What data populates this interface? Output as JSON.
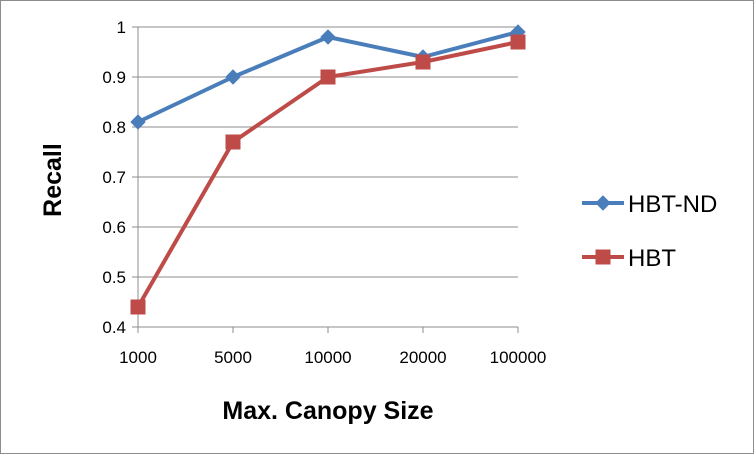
{
  "chart_data": {
    "type": "line",
    "title": "",
    "xlabel": "Max. Canopy Size",
    "ylabel": "Recall",
    "categories": [
      "1000",
      "5000",
      "10000",
      "20000",
      "100000"
    ],
    "ylim": [
      0.4,
      1
    ],
    "yticks": [
      0.4,
      0.5,
      0.6,
      0.7,
      0.8,
      0.9,
      1
    ],
    "ytick_labels": [
      "0.4",
      "0.5",
      "0.6",
      "0.7",
      "0.8",
      "0.9",
      "1"
    ],
    "grid": true,
    "legend_position": "right",
    "series": [
      {
        "name": "HBT-ND",
        "values": [
          0.81,
          0.9,
          0.98,
          0.94,
          0.99
        ],
        "color": "#4a7ebb",
        "marker": "diamond"
      },
      {
        "name": "HBT",
        "values": [
          0.44,
          0.77,
          0.9,
          0.93,
          0.97
        ],
        "color": "#be4b48",
        "marker": "square"
      }
    ]
  }
}
